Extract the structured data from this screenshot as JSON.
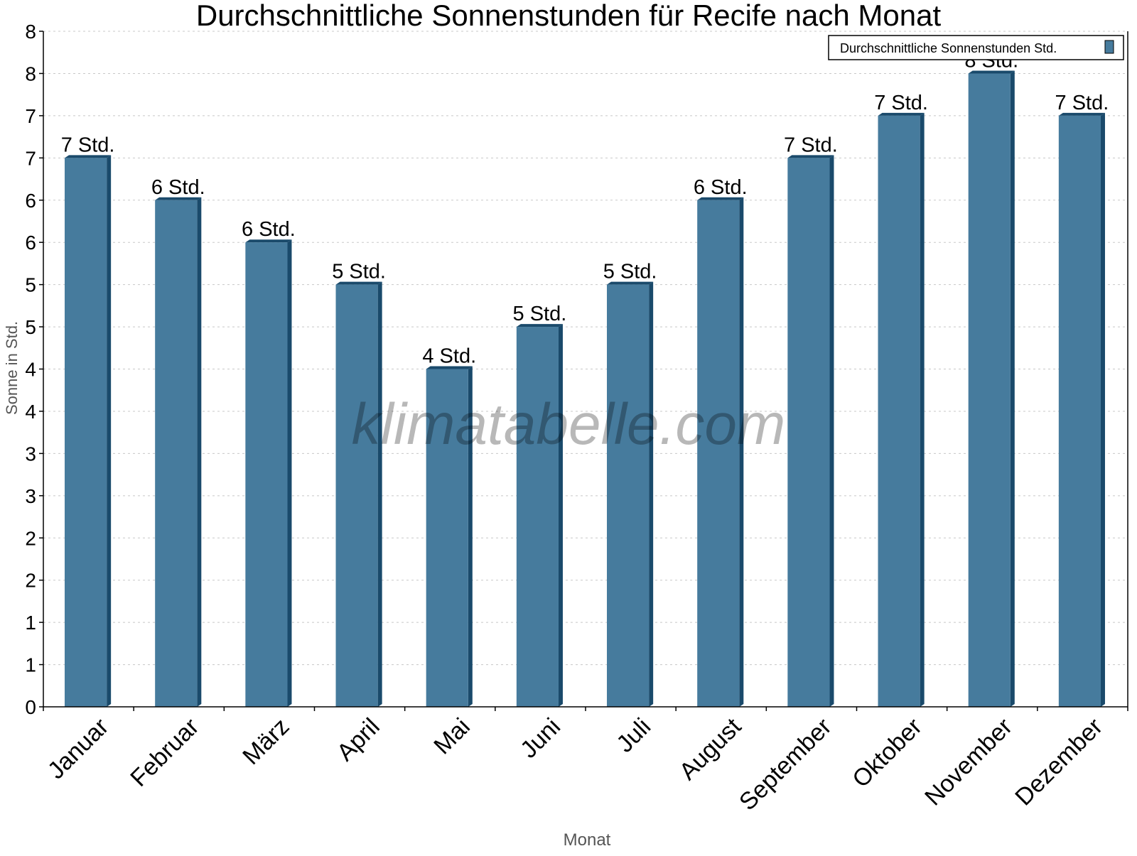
{
  "chart_data": {
    "type": "bar",
    "title": "Durchschnittliche Sonnenstunden für Recife nach Monat",
    "xlabel": "Monat",
    "ylabel": "Sonne in Std.",
    "categories": [
      "Januar",
      "Februar",
      "März",
      "April",
      "Mai",
      "Juni",
      "Juli",
      "August",
      "September",
      "Oktober",
      "November",
      "Dezember"
    ],
    "series": [
      {
        "name": "Durchschnittliche Sonnenstunden Std.",
        "color": "#467b9d",
        "side_color": "#1a4a6b",
        "values": [
          6.5,
          6.0,
          5.5,
          5.0,
          4.0,
          4.5,
          5.0,
          6.0,
          6.5,
          7.0,
          7.5,
          7.0
        ]
      }
    ],
    "data_labels": [
      "7 Std.",
      "6 Std.",
      "6 Std.",
      "5 Std.",
      "4 Std.",
      "5 Std.",
      "5 Std.",
      "6 Std.",
      "7 Std.",
      "7 Std.",
      "8 Std.",
      "7 Std."
    ],
    "ylim": [
      0,
      8
    ],
    "ytick_values": [
      0,
      0.5,
      1,
      1.5,
      2,
      2.5,
      3,
      3.5,
      4,
      4.5,
      5,
      5.5,
      6,
      6.5,
      7,
      7.5,
      8
    ],
    "ytick_labels": [
      "0",
      "1",
      "1",
      "2",
      "2",
      "3",
      "3",
      "4",
      "4",
      "5",
      "5",
      "6",
      "6",
      "7",
      "7",
      "8",
      "8"
    ],
    "grid": true,
    "legend": "top-right",
    "watermark": "klimatabelle.com"
  }
}
